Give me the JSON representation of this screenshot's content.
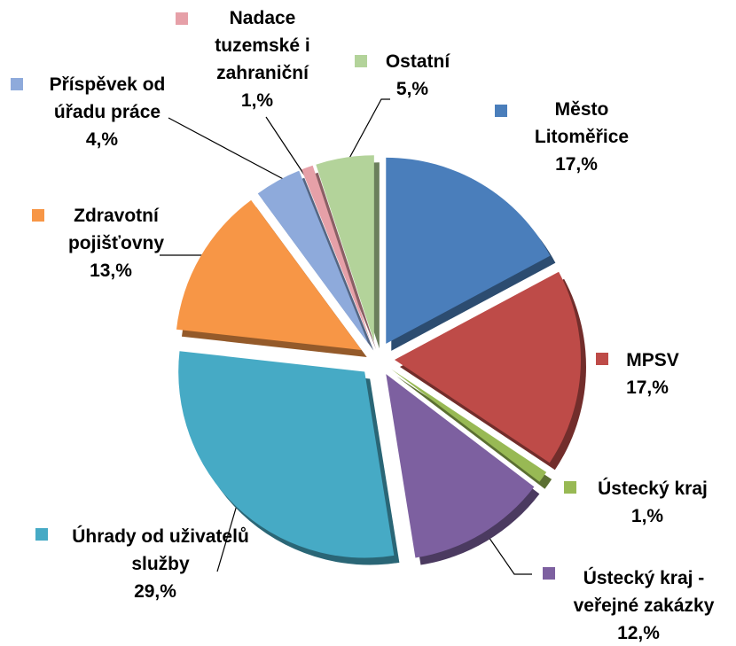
{
  "chart_data": {
    "type": "pie",
    "categories": [
      "Město Litoměřice",
      "MPSV",
      "Ústecký kraj",
      "Ústecký kraj - veřejné zakázky",
      "Úhrady od uživatelů služby",
      "Zdravotní pojišťovny",
      "Příspěvek od úřadu práce",
      "Nadace tuzemské i zahraniční",
      "Ostatní"
    ],
    "values": [
      17,
      17,
      1,
      12,
      29,
      13,
      4,
      1,
      5
    ],
    "value_labels": [
      "17,%",
      "17,%",
      "1,%",
      "12,%",
      "29,%",
      "13,%",
      "4,%",
      "1,%",
      "5,%"
    ],
    "colors": [
      "#4a7ebb",
      "#be4b48",
      "#98b954",
      "#7d60a0",
      "#46aac5",
      "#f79646",
      "#8eaadb",
      "#e6a0a8",
      "#b3d39a"
    ]
  }
}
